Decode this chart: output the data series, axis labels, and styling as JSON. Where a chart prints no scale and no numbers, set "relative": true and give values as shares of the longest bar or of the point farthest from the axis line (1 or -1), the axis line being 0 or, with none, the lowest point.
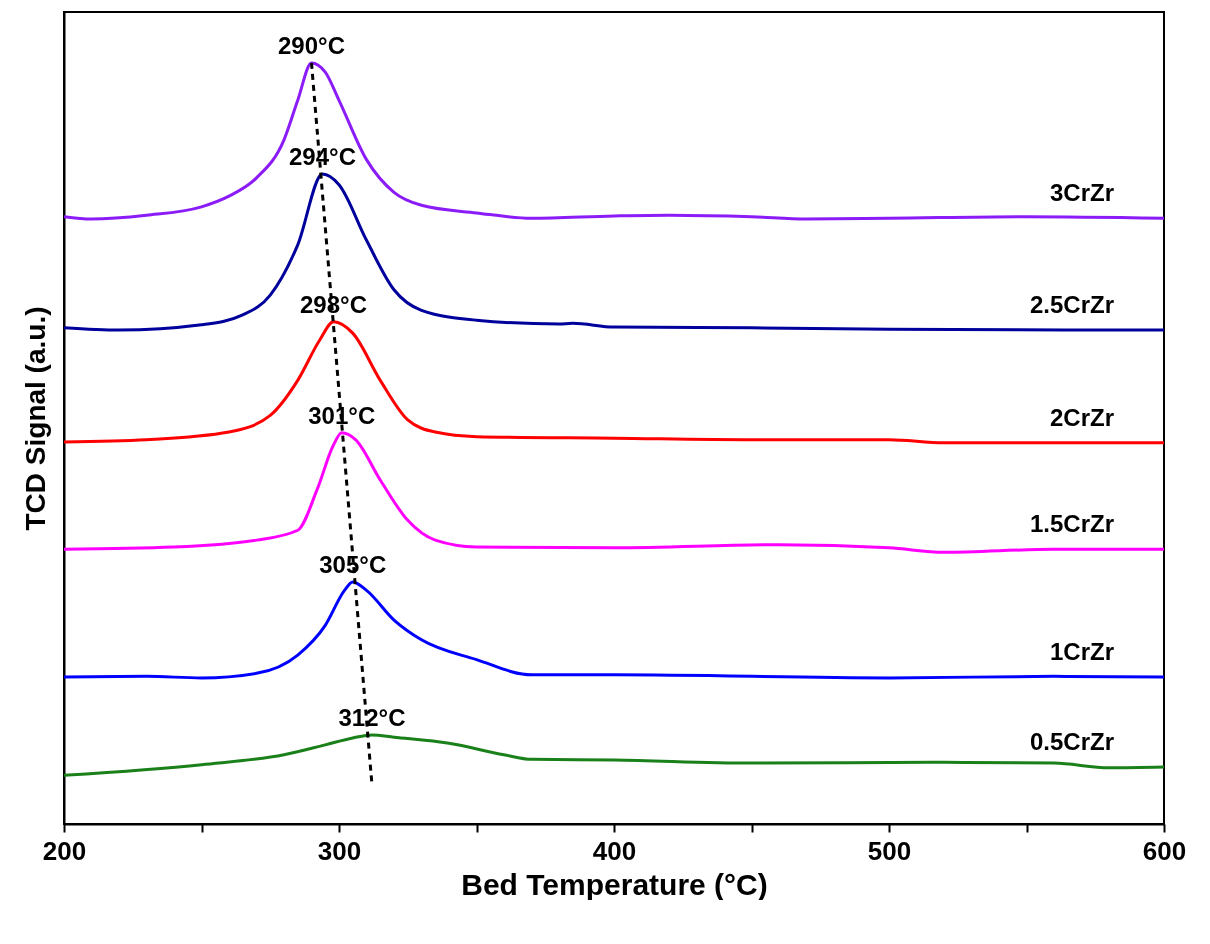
{
  "chart_data": {
    "type": "line",
    "relative": true,
    "xlabel": "Bed Temperature (°C)",
    "ylabel": "TCD Signal (a.u.)",
    "xlim": [
      200,
      600
    ],
    "xticks": [
      200,
      {
        "value": 250,
        "label": null
      },
      300,
      {
        "value": 350,
        "label": null
      },
      400,
      {
        "value": 450,
        "label": null
      },
      500,
      {
        "value": 550,
        "label": null
      },
      600
    ],
    "grid": false,
    "marker": "none",
    "tick_labels": "x",
    "series": [
      {
        "name": "3CrZr",
        "color": "#8b1cf7",
        "x": [
          200,
          210,
          230,
          250,
          260,
          270,
          280,
          285,
          290,
          295,
          300,
          310,
          320,
          330,
          350,
          370,
          400,
          420,
          450,
          470,
          500,
          550,
          600
        ],
        "values": [
          0.798,
          0.795,
          0.8,
          0.811,
          0.825,
          0.849,
          0.899,
          0.951,
          1.0,
          0.988,
          0.951,
          0.873,
          0.83,
          0.813,
          0.803,
          0.796,
          0.799,
          0.8,
          0.798,
          0.795,
          0.796,
          0.798,
          0.796
        ]
      },
      {
        "name": "2.5CrZr",
        "color": "#00009c",
        "x": [
          200,
          220,
          250,
          265,
          275,
          285,
          294,
          300,
          310,
          320,
          330,
          350,
          380,
          385,
          400,
          450,
          500,
          600
        ],
        "values": [
          0.652,
          0.649,
          0.656,
          0.669,
          0.695,
          0.761,
          0.854,
          0.84,
          0.767,
          0.702,
          0.675,
          0.662,
          0.657,
          0.658,
          0.653,
          0.652,
          0.65,
          0.649
        ]
      },
      {
        "name": "2CrZr",
        "color": "#ff0000",
        "x": [
          200,
          230,
          260,
          275,
          285,
          293,
          298,
          305,
          315,
          325,
          335,
          350,
          400,
          450,
          500,
          520,
          600
        ],
        "values": [
          0.502,
          0.505,
          0.515,
          0.537,
          0.583,
          0.636,
          0.66,
          0.645,
          0.583,
          0.531,
          0.515,
          0.509,
          0.507,
          0.505,
          0.505,
          0.501,
          0.501
        ]
      },
      {
        "name": "1.5CrZr",
        "color": "#ff00ff",
        "x": [
          200,
          240,
          270,
          285,
          292,
          298,
          301,
          306,
          315,
          325,
          335,
          350,
          400,
          460,
          500,
          520,
          560,
          600
        ],
        "values": [
          0.361,
          0.364,
          0.373,
          0.386,
          0.439,
          0.498,
          0.514,
          0.505,
          0.452,
          0.399,
          0.373,
          0.364,
          0.363,
          0.367,
          0.363,
          0.357,
          0.361,
          0.361
        ]
      },
      {
        "name": "1CrZr",
        "color": "#0000ff",
        "x": [
          200,
          230,
          250,
          270,
          285,
          295,
          302,
          305,
          310,
          320,
          330,
          350,
          370,
          400,
          500,
          560,
          600
        ],
        "values": [
          0.193,
          0.194,
          0.192,
          0.198,
          0.222,
          0.261,
          0.307,
          0.318,
          0.307,
          0.268,
          0.242,
          0.216,
          0.196,
          0.196,
          0.192,
          0.194,
          0.193
        ]
      },
      {
        "name": "0.5CrZr",
        "color": "#1a801a",
        "x": [
          200,
          250,
          280,
          295,
          305,
          312,
          320,
          340,
          360,
          370,
          400,
          450,
          520,
          560,
          580,
          600
        ],
        "values": [
          0.064,
          0.078,
          0.091,
          0.104,
          0.113,
          0.117,
          0.114,
          0.106,
          0.091,
          0.085,
          0.084,
          0.08,
          0.081,
          0.08,
          0.074,
          0.075
        ]
      },
      {
        "color": "#000000",
        "line_style": "dashed",
        "x": [
          290,
          312
        ],
        "values": [
          1.0,
          0.051
        ]
      }
    ],
    "annotations": [
      {
        "text": "290°C",
        "x": 290,
        "y": 1.0
      },
      {
        "text": "294°C",
        "x": 294,
        "y": 0.854
      },
      {
        "text": "298°C",
        "x": 298,
        "y": 0.66
      },
      {
        "text": "301°C",
        "x": 301,
        "y": 0.514
      },
      {
        "text": "305°C",
        "x": 305,
        "y": 0.318
      },
      {
        "text": "312°C",
        "x": 312,
        "y": 0.117
      }
    ]
  }
}
